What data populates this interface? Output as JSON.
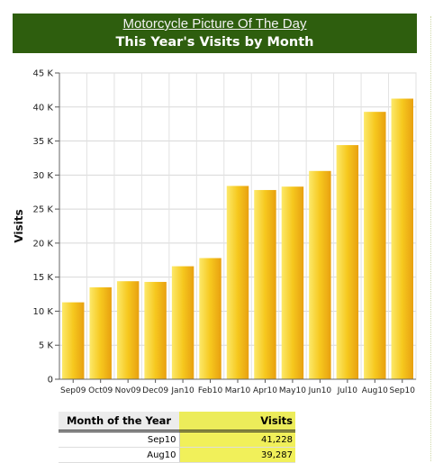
{
  "header": {
    "subtitle": "Motorcycle Picture Of The Day",
    "title": "This Year's Visits by Month",
    "bg_color": "#2e5e0e"
  },
  "chart_data": {
    "type": "bar",
    "ylabel": "Visits",
    "xlabel": "",
    "ylim": [
      0,
      45000
    ],
    "yticks": [
      0,
      5000,
      10000,
      15000,
      20000,
      25000,
      30000,
      35000,
      40000,
      45000
    ],
    "ytick_labels": [
      "0",
      "5 K",
      "10 K",
      "15 K",
      "20 K",
      "25 K",
      "30 K",
      "35 K",
      "40 K",
      "45 K"
    ],
    "categories": [
      "Sep09",
      "Oct09",
      "Nov09",
      "Dec09",
      "Jan10",
      "Feb10",
      "Mar10",
      "Apr10",
      "May10",
      "Jun10",
      "Jul10",
      "Aug10",
      "Sep10"
    ],
    "values": [
      11300,
      13500,
      14400,
      14300,
      16600,
      17800,
      28400,
      27800,
      28300,
      30600,
      34400,
      39287,
      41228
    ],
    "grid": true,
    "bar_color": "#f3c418"
  },
  "table": {
    "col1_header": "Month of the Year",
    "col2_header": "Visits",
    "rows": [
      {
        "month": "Sep10",
        "visits": "41,228"
      },
      {
        "month": "Aug10",
        "visits": "39,287"
      }
    ]
  }
}
